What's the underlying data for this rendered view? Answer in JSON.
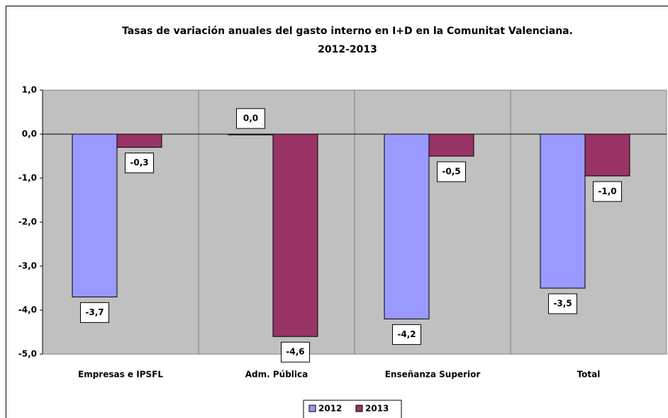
{
  "chart_data": {
    "type": "bar",
    "title": [
      "Tasas de variación anuales del gasto interno en I+D en la Comunitat Valenciana.",
      "2012-2013"
    ],
    "categories": [
      "Empresas e IPSFL",
      "Adm. Pública",
      "Enseñanza Superior",
      "Total"
    ],
    "series": [
      {
        "name": "2012",
        "color": "#9999ff",
        "values": [
          -3.7,
          0.0,
          -4.2,
          -3.5
        ],
        "value_labels": [
          "-3,7",
          "0,0",
          "-4,2",
          "-3,5"
        ]
      },
      {
        "name": "2013",
        "color": "#993366",
        "values": [
          -0.3,
          -4.6,
          -0.5,
          -0.95
        ],
        "value_labels": [
          "-0,3",
          "-4,6",
          "-0,5",
          "-1,0"
        ]
      }
    ],
    "ylim": [
      -5,
      1
    ],
    "yticks": [
      {
        "value": 1,
        "label": "1,0"
      },
      {
        "value": 0,
        "label": "0,0"
      },
      {
        "value": -1,
        "label": "-1,0"
      },
      {
        "value": -2,
        "label": "-2,0"
      },
      {
        "value": -3,
        "label": "-3,0"
      },
      {
        "value": -4,
        "label": "-4,0"
      },
      {
        "value": -5,
        "label": "-5,0"
      }
    ],
    "grid": false,
    "legend": "bottom"
  }
}
